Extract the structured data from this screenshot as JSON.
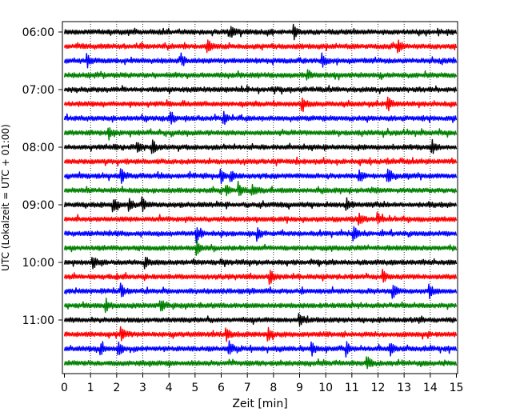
{
  "chart_data": {
    "type": "line",
    "title": "",
    "xlabel": "Zeit  [min]",
    "ylabel": "UTC (Lokalzeit = UTC + 01:00)",
    "xlim": [
      0,
      15
    ],
    "x_ticks": [
      0,
      1,
      2,
      3,
      4,
      5,
      6,
      7,
      8,
      9,
      10,
      11,
      12,
      13,
      14,
      15
    ],
    "x_tick_labels": [
      "0",
      "1",
      "2",
      "3",
      "4",
      "5",
      "6",
      "7",
      "8",
      "9",
      "10",
      "11",
      "12",
      "13",
      "14",
      "15"
    ],
    "y_tick_labels": [
      "06:00",
      "07:00",
      "08:00",
      "09:00",
      "10:00",
      "11:00"
    ],
    "y_tick_traces": [
      0,
      4,
      8,
      12,
      16,
      20
    ],
    "grid": "vertical dotted",
    "trace_interval_minutes": 15,
    "trace_colors": [
      "#000000",
      "#ff0000",
      "#0000ff",
      "#008000"
    ],
    "series": [
      {
        "start": "06:00",
        "events": [
          6.4,
          8.8
        ]
      },
      {
        "start": "06:15",
        "events": [
          5.5,
          12.8
        ]
      },
      {
        "start": "06:30",
        "events": [
          0.9,
          4.5,
          9.9
        ]
      },
      {
        "start": "06:45",
        "events": [
          9.3
        ]
      },
      {
        "start": "07:00",
        "events": []
      },
      {
        "start": "07:15",
        "events": [
          9.1,
          12.4
        ]
      },
      {
        "start": "07:30",
        "events": [
          4.1,
          6.1
        ]
      },
      {
        "start": "07:45",
        "events": [
          1.7
        ]
      },
      {
        "start": "08:00",
        "events": [
          2.8,
          3.4,
          14.1
        ]
      },
      {
        "start": "08:15",
        "events": []
      },
      {
        "start": "08:30",
        "events": [
          2.2,
          6.0,
          6.4,
          11.3,
          12.4
        ]
      },
      {
        "start": "08:45",
        "events": [
          6.2,
          6.7,
          7.2
        ]
      },
      {
        "start": "09:00",
        "events": [
          1.9,
          2.5,
          3.0,
          10.8
        ]
      },
      {
        "start": "09:15",
        "events": [
          11.3,
          12.0
        ]
      },
      {
        "start": "09:30",
        "events": [
          5.1,
          7.4,
          11.1
        ]
      },
      {
        "start": "09:45",
        "events": [
          5.1
        ]
      },
      {
        "start": "10:00",
        "events": [
          1.1,
          3.1
        ]
      },
      {
        "start": "10:15",
        "events": [
          7.9,
          12.2
        ]
      },
      {
        "start": "10:30",
        "events": [
          2.2,
          12.6,
          14.0
        ]
      },
      {
        "start": "10:45",
        "events": [
          1.6,
          3.7
        ]
      },
      {
        "start": "11:00",
        "events": [
          9.0
        ]
      },
      {
        "start": "11:15",
        "events": [
          2.2,
          6.2,
          7.8
        ]
      },
      {
        "start": "11:30",
        "events": [
          1.4,
          2.1,
          6.3,
          9.5,
          10.8,
          12.5
        ]
      },
      {
        "start": "11:45",
        "events": [
          11.6
        ]
      }
    ]
  }
}
